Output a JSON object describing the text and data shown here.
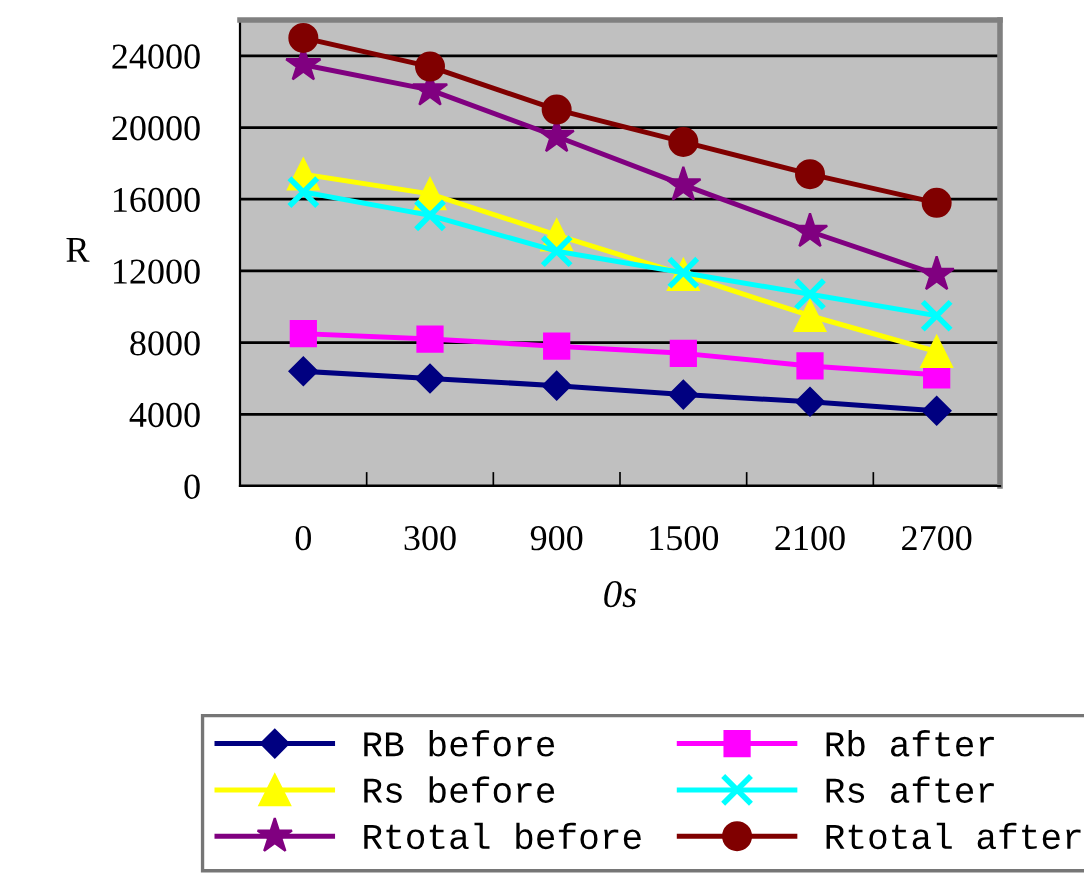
{
  "chart_data": {
    "type": "line",
    "xlabel": "0s",
    "ylabel": "R",
    "categories": [
      "0",
      "300",
      "900",
      "1500",
      "2100",
      "2700"
    ],
    "ylim": [
      0,
      26000
    ],
    "yticks": [
      0,
      4000,
      8000,
      12000,
      16000,
      20000,
      24000
    ],
    "grid": "y",
    "legend": "bottom",
    "series": [
      {
        "name": "RB before",
        "color": "#000080",
        "marker": "diamond",
        "values": [
          6400,
          6000,
          5600,
          5100,
          4700,
          4200
        ]
      },
      {
        "name": "Rb after",
        "color": "#ff00ff",
        "marker": "square",
        "values": [
          8500,
          8200,
          7800,
          7400,
          6700,
          6200
        ]
      },
      {
        "name": "Rs before",
        "color": "#ffff00",
        "marker": "triangle",
        "values": [
          17400,
          16300,
          14000,
          11800,
          9500,
          7500
        ]
      },
      {
        "name": "Rs after",
        "color": "#00ffff",
        "marker": "cross",
        "values": [
          16400,
          15100,
          13100,
          11900,
          10700,
          9500
        ]
      },
      {
        "name": "Rtotal before",
        "color": "#800080",
        "marker": "star",
        "values": [
          23500,
          22100,
          19500,
          16800,
          14200,
          11800
        ]
      },
      {
        "name": "Rtotal after",
        "color": "#800000",
        "marker": "circle",
        "values": [
          25000,
          23400,
          21000,
          19200,
          17400,
          15800
        ]
      }
    ]
  }
}
